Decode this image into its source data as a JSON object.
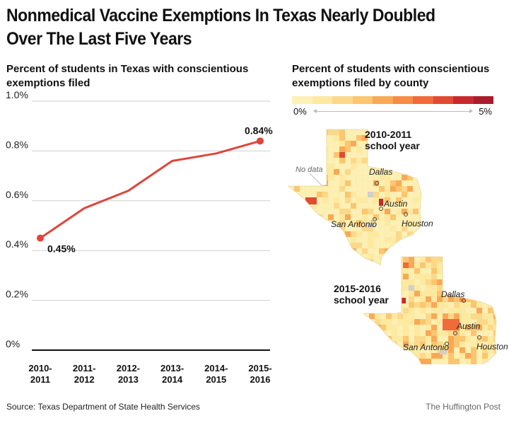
{
  "title": "Nonmedical Vaccine Exemptions In Texas Nearly Doubled\nOver The Last Five Years",
  "left_subtitle": "Percent of students in Texas with conscientious\nexemptions filed",
  "right_subtitle": "Percent of students with conscientious\nexemptions filed by county",
  "colors": {
    "line": "#e0443a",
    "scale": [
      "#fdf1b8",
      "#fde9a0",
      "#fcd98a",
      "#fbc66f",
      "#f9a955",
      "#f68c45",
      "#f06a3a",
      "#e14a33",
      "#c8292d",
      "#a91c2a"
    ],
    "map_base": "#fdf0b4",
    "no_data": "#cfcfcf"
  },
  "scale": {
    "min_label": "0%",
    "max_label": "5%"
  },
  "maps": [
    {
      "year_label": "2010-2011\nschool year",
      "cities": [
        "Dallas",
        "Austin",
        "San Antonio",
        "Houston"
      ],
      "no_data_label": "No data"
    },
    {
      "year_label": "2015-2016\nschool year",
      "cities": [
        "Dallas",
        "Austin",
        "San Antonio",
        "Houston"
      ]
    }
  ],
  "chart_data": {
    "type": "line",
    "title": "Percent of students in Texas with conscientious exemptions filed",
    "categories": [
      "2010-2011",
      "2011-2012",
      "2012-2013",
      "2013-2014",
      "2014-2015",
      "2015-2016"
    ],
    "series": [
      {
        "values": [
          0.45,
          0.57,
          0.64,
          0.76,
          0.79,
          0.84
        ]
      }
    ],
    "yticks": [
      "0%",
      "0.2%",
      "0.4%",
      "0.6%",
      "0.8%",
      "1.0%"
    ],
    "ylim": [
      0,
      1.0
    ],
    "data_labels": [
      {
        "index": 0,
        "text": "0.45%"
      },
      {
        "index": 5,
        "text": "0.84%"
      }
    ],
    "grid": true,
    "xlabel": "",
    "ylabel": ""
  },
  "source": "Source: Texas Department of State Health Services",
  "brand": "The Huffington Post"
}
